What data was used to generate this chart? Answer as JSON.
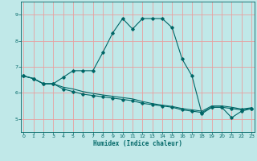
{
  "xlabel": "Humidex (Indice chaleur)",
  "background_color": "#c0e8e8",
  "line_color": "#006666",
  "grid_color": "#e8a0a0",
  "x_ticks": [
    0,
    1,
    2,
    3,
    4,
    5,
    6,
    7,
    8,
    9,
    10,
    11,
    12,
    13,
    14,
    15,
    16,
    17,
    18,
    19,
    20,
    21,
    22,
    23
  ],
  "y_ticks": [
    5,
    6,
    7,
    8,
    9
  ],
  "xlim": [
    -0.3,
    23.3
  ],
  "ylim": [
    4.5,
    9.5
  ],
  "curve1_x": [
    0,
    1,
    2,
    3,
    4,
    5,
    6,
    7,
    8,
    9,
    10,
    11,
    12,
    13,
    14,
    15,
    16,
    17,
    18,
    19,
    20,
    21,
    22,
    23
  ],
  "curve1_y": [
    6.65,
    6.55,
    6.35,
    6.35,
    6.6,
    6.85,
    6.85,
    6.85,
    7.55,
    8.3,
    8.85,
    8.45,
    8.85,
    8.85,
    8.85,
    8.5,
    7.3,
    6.65,
    5.2,
    5.45,
    5.45,
    5.05,
    5.3,
    5.4
  ],
  "curve2_x": [
    0,
    1,
    2,
    3,
    4,
    5,
    6,
    7,
    8,
    9,
    10,
    11,
    12,
    13,
    14,
    15,
    16,
    17,
    18,
    19,
    20,
    21,
    22,
    23
  ],
  "curve2_y": [
    6.65,
    6.55,
    6.35,
    6.35,
    6.15,
    6.05,
    5.95,
    5.9,
    5.85,
    5.8,
    5.75,
    5.7,
    5.6,
    5.55,
    5.5,
    5.45,
    5.35,
    5.3,
    5.25,
    5.45,
    5.45,
    5.4,
    5.35,
    5.4
  ],
  "curve3_x": [
    0,
    1,
    2,
    3,
    4,
    5,
    6,
    7,
    8,
    9,
    10,
    11,
    12,
    13,
    14,
    15,
    16,
    17,
    18,
    19,
    20,
    21,
    22,
    23
  ],
  "curve3_y": [
    6.65,
    6.55,
    6.35,
    6.35,
    6.22,
    6.15,
    6.05,
    5.98,
    5.92,
    5.87,
    5.82,
    5.77,
    5.67,
    5.59,
    5.53,
    5.48,
    5.4,
    5.35,
    5.3,
    5.5,
    5.5,
    5.45,
    5.38,
    5.43
  ]
}
